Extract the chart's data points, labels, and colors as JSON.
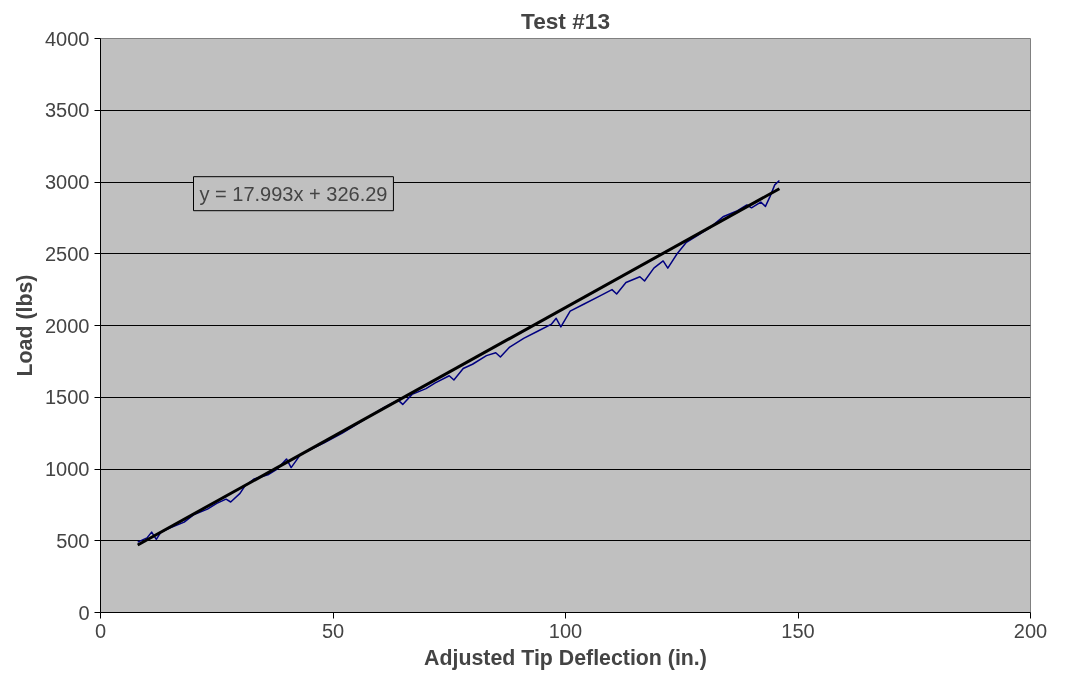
{
  "chart_data": {
    "type": "line",
    "title": "Test #13",
    "xlabel": "Adjusted Tip Deflection (in.)",
    "ylabel": "Load (lbs)",
    "xlim": [
      0,
      200
    ],
    "xticks": [
      0,
      50,
      100,
      150,
      200
    ],
    "ylim": [
      0,
      4000
    ],
    "yticks": [
      0,
      500,
      1000,
      1500,
      2000,
      2500,
      3000,
      3500,
      4000
    ],
    "grid": "y",
    "marker": "none",
    "line_style": "solid",
    "annotations": [
      "y = 17.993x + 326.29"
    ],
    "series": [
      {
        "color": "#000080",
        "x": [
          8,
          10,
          11,
          12,
          13,
          15,
          18,
          20,
          23,
          25,
          27,
          28,
          30,
          31,
          33,
          36,
          38,
          40,
          41,
          43,
          46,
          48,
          52,
          55,
          58,
          61,
          64,
          65,
          67,
          70,
          72,
          75,
          76,
          78,
          80,
          83,
          85,
          86,
          88,
          91,
          94,
          97,
          98,
          99,
          101,
          104,
          107,
          110,
          111,
          113,
          116,
          117,
          119,
          121,
          122,
          124,
          126,
          128,
          131,
          134,
          137,
          139,
          140,
          142,
          143,
          144,
          145,
          146
        ],
        "values": [
          490,
          520,
          560,
          510,
          560,
          590,
          630,
          680,
          720,
          760,
          790,
          770,
          830,
          880,
          930,
          960,
          1000,
          1070,
          1010,
          1100,
          1150,
          1180,
          1250,
          1310,
          1370,
          1430,
          1480,
          1450,
          1520,
          1560,
          1600,
          1650,
          1620,
          1700,
          1730,
          1790,
          1810,
          1780,
          1850,
          1910,
          1960,
          2010,
          2050,
          1990,
          2100,
          2150,
          2200,
          2250,
          2220,
          2300,
          2340,
          2310,
          2400,
          2450,
          2400,
          2500,
          2580,
          2620,
          2680,
          2760,
          2800,
          2840,
          2820,
          2860,
          2830,
          2900,
          2980,
          3010
        ]
      },
      {
        "type": "line",
        "color": "#000000",
        "x": [
          8,
          146
        ],
        "values": [
          470,
          2953
        ]
      }
    ]
  }
}
